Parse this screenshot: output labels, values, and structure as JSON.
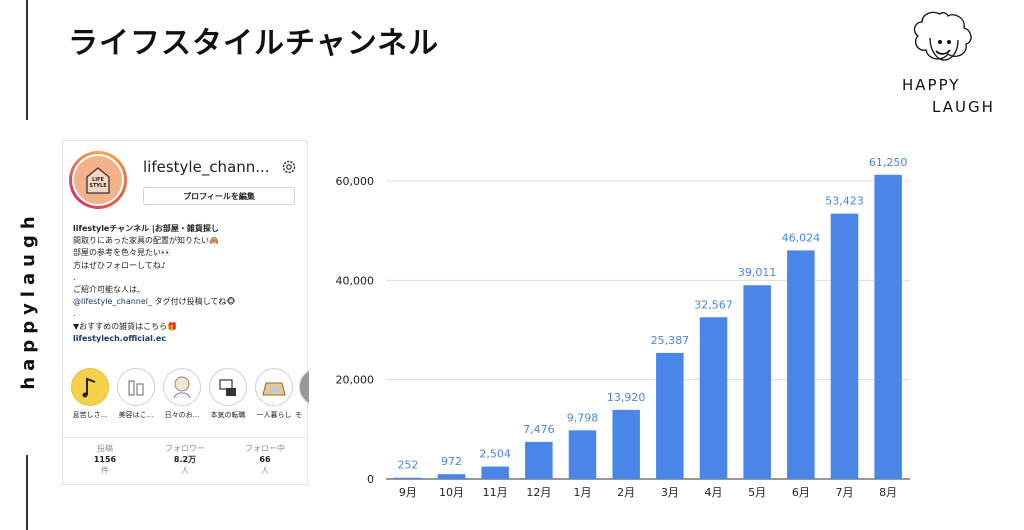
{
  "page": {
    "title": "ライフスタイルチャンネル",
    "side_text": "happylaugh"
  },
  "logo": {
    "line1": "HAPPY",
    "line2": "LAUGH"
  },
  "profile": {
    "username": "lifestyle_chann...",
    "avatar_text": "LIFE\nSTYLE",
    "edit_button": "プロフィールを編集",
    "bio": {
      "name": "lifestyleチャンネル |お部屋・雑貨探し",
      "line1": "間取りにあった家具の配置が知りたい🙈",
      "line2": "部屋の参考を色々見たい👀",
      "line3": "方はぜひフォローしてね♪",
      "dot1": ".",
      "line4": "ご紹介可能な人は、",
      "mention": "@lifestyle_channel_",
      "mention_suffix": " タグ付け投稿してね🐵",
      "dot2": ".",
      "line5": "▼おすすめの雑貨はこちら🎁",
      "link": "lifestylech.official.ec"
    },
    "highlights": [
      {
        "label": "息苦しさ...",
        "icon": "music-note-icon"
      },
      {
        "label": "美容はこ...",
        "icon": "bottles-icon"
      },
      {
        "label": "日々のお...",
        "icon": "character-icon"
      },
      {
        "label": "本気の転職",
        "icon": "desk-icon"
      },
      {
        "label": "一人暮らし",
        "icon": "room-icon"
      },
      {
        "label": "モ",
        "icon": "partial-highlight-icon"
      }
    ],
    "stats": [
      {
        "label": "投稿",
        "value": "1156",
        "unit": "件"
      },
      {
        "label": "フォロワー",
        "value": "8.2万",
        "unit": "人"
      },
      {
        "label": "フォロー中",
        "value": "66",
        "unit": "人"
      }
    ]
  },
  "colors": {
    "bar": "#4a86e8",
    "label": "#4a86e8",
    "grid": "#dddddd",
    "axis": "#333333"
  },
  "chart_data": {
    "type": "bar",
    "categories": [
      "9月",
      "10月",
      "11月",
      "12月",
      "1月",
      "2月",
      "3月",
      "4月",
      "5月",
      "6月",
      "7月",
      "8月"
    ],
    "values": [
      252,
      972,
      2504,
      7476,
      9798,
      13920,
      25387,
      32567,
      39011,
      46024,
      53423,
      61250
    ],
    "data_labels": [
      "252",
      "972",
      "2,504",
      "7,476",
      "9,798",
      "13,920",
      "25,387",
      "32,567",
      "39,011",
      "46,024",
      "53,423",
      "61,250"
    ],
    "yticks": [
      0,
      20000,
      40000,
      60000
    ],
    "ytick_labels": [
      "0",
      "20,000",
      "40,000",
      "60,000"
    ],
    "ylim": [
      0,
      60000
    ],
    "grid": true,
    "legend": "none"
  }
}
